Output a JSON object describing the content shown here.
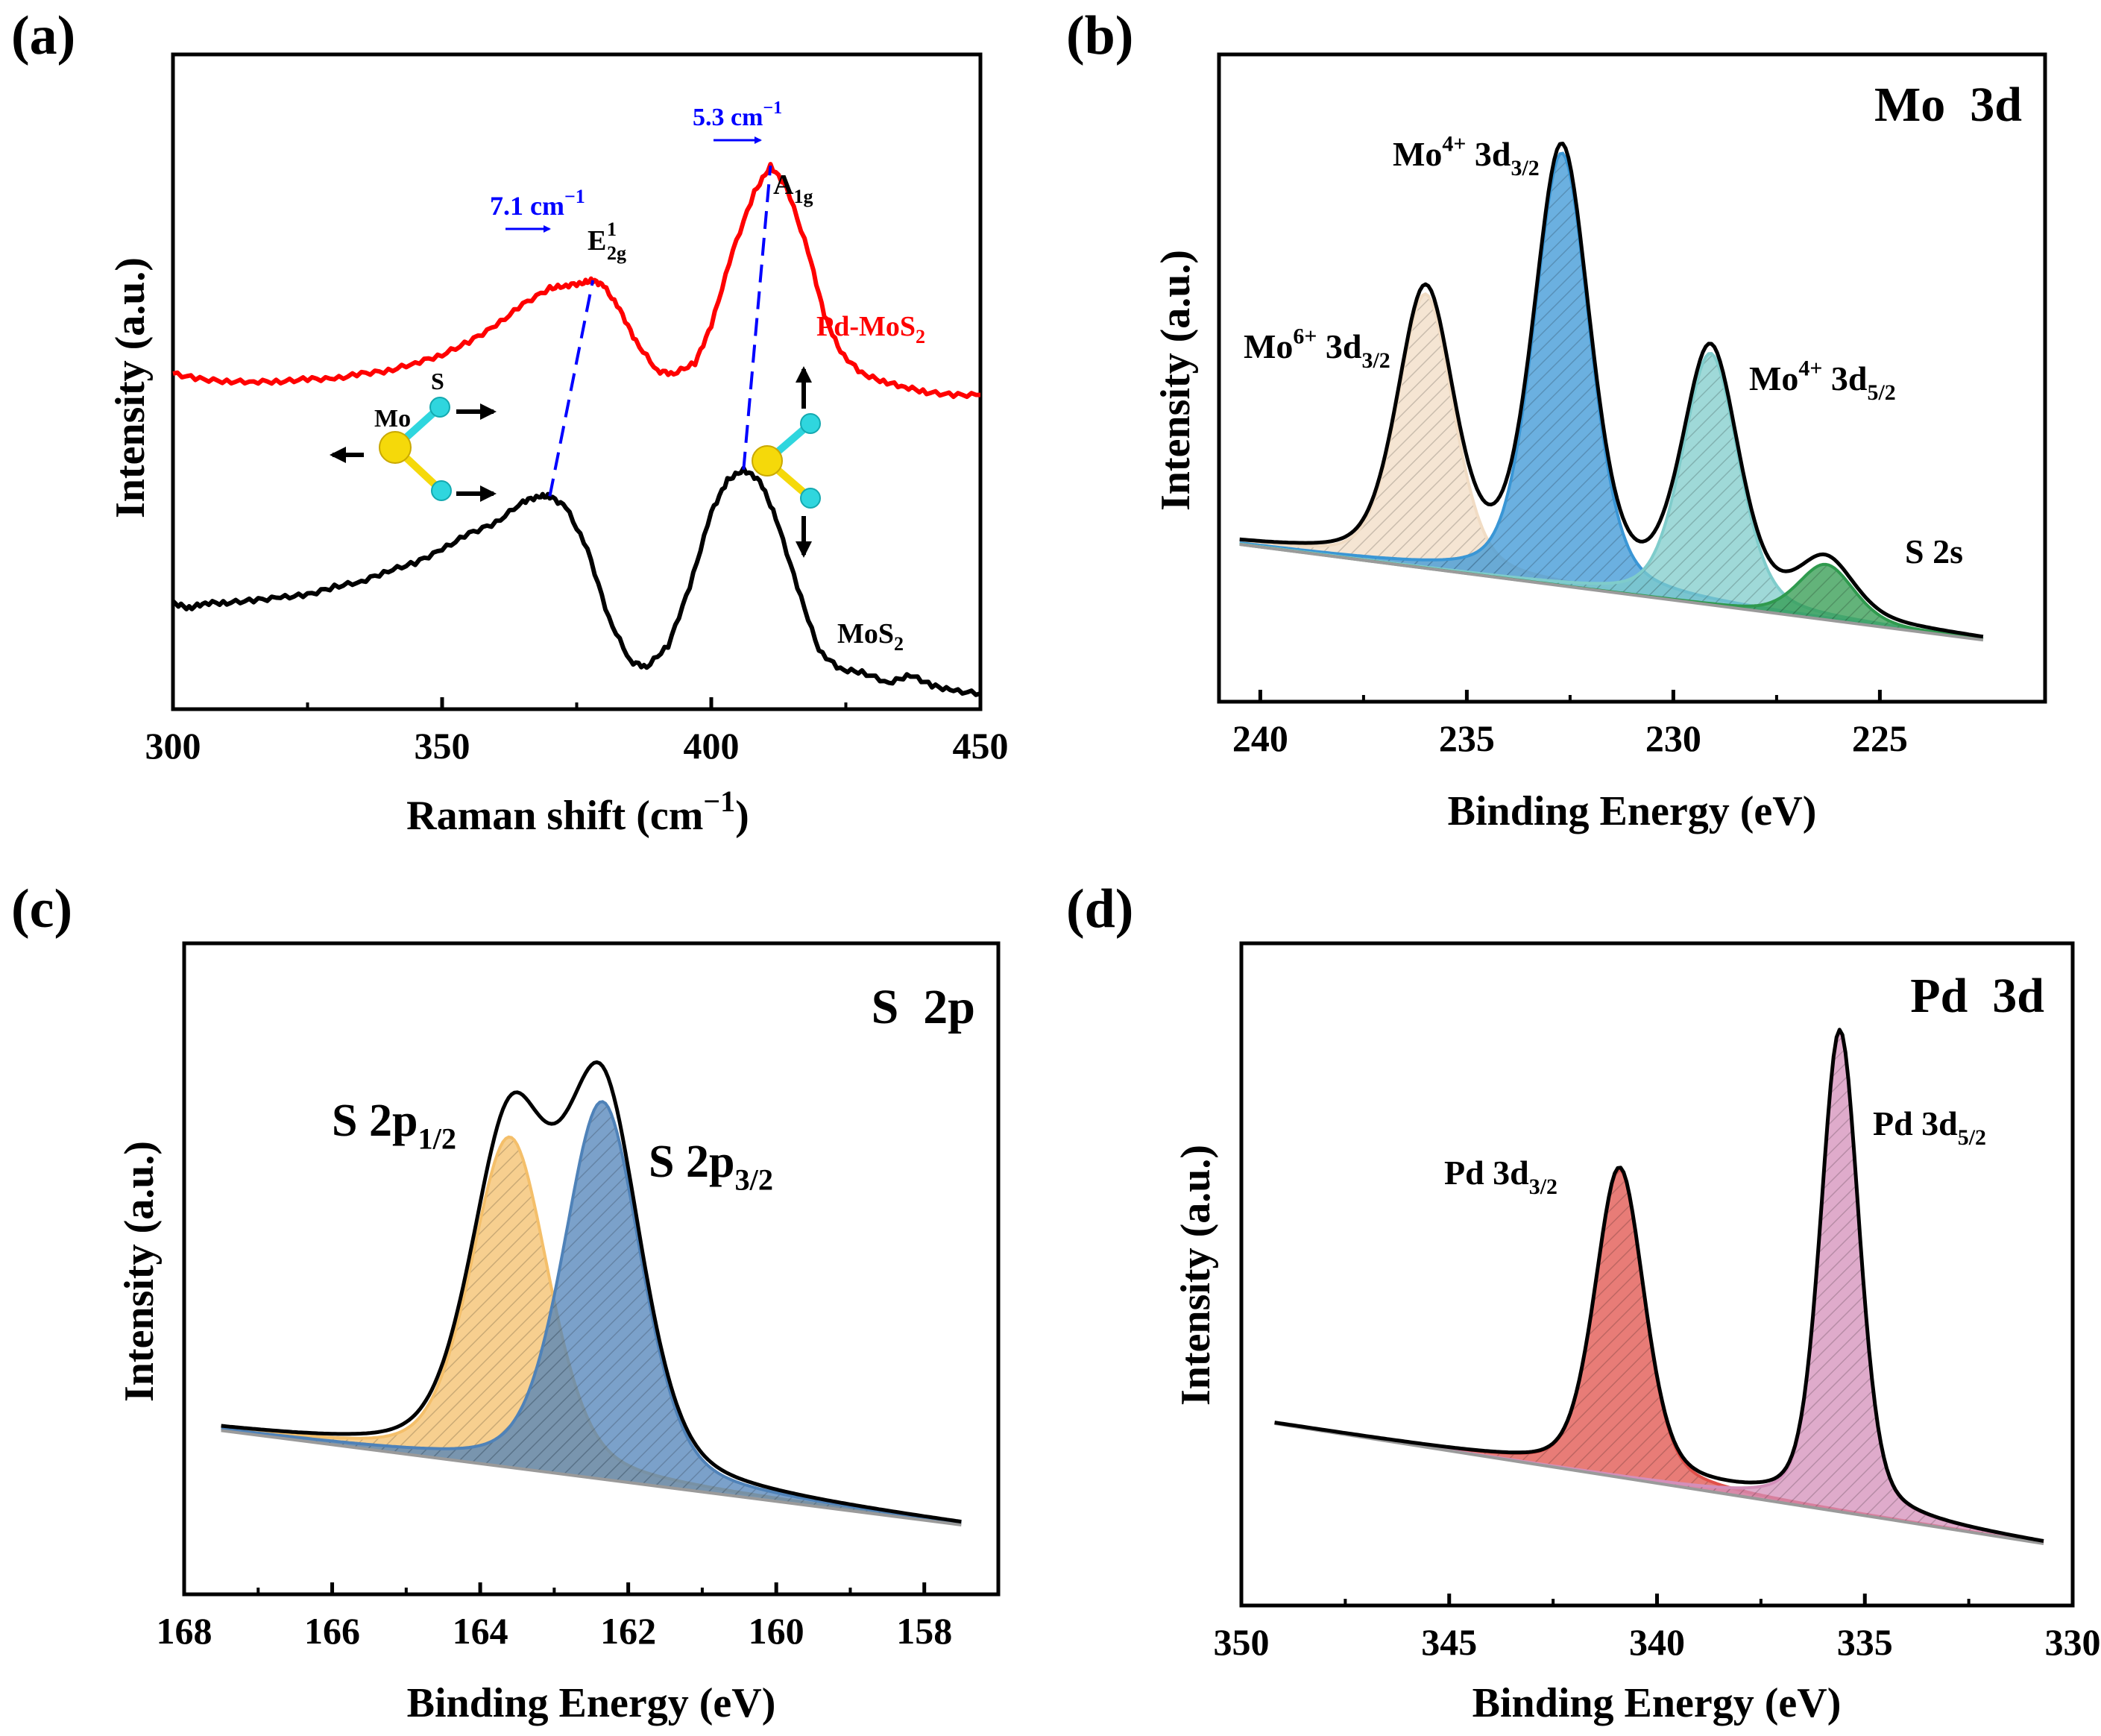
{
  "chart_data": [
    {
      "panel": "(a)",
      "type": "line",
      "xlabel": "Raman shift (cm",
      "xlabel_sup": "−1",
      "xlabel_end": ")",
      "ylabel": "Intensity (a.u.)",
      "xlim": [
        300,
        450
      ],
      "xticks": [
        "300",
        "350",
        "400",
        "450"
      ],
      "series": [
        {
          "name": "Pd-MoS2",
          "label_main": "Pd-MoS",
          "label_sub": "2",
          "color": "#ff0000",
          "x": [
            300,
            305,
            310,
            315,
            320,
            325,
            330,
            335,
            340,
            345,
            350,
            355,
            360,
            365,
            370,
            373,
            376,
            378,
            380,
            383,
            386,
            390,
            393,
            397,
            400,
            404,
            408,
            411,
            414,
            418,
            421,
            424,
            428,
            432,
            436,
            440,
            445,
            450
          ],
          "y": [
            0.6,
            0.59,
            0.585,
            0.585,
            0.585,
            0.59,
            0.59,
            0.6,
            0.605,
            0.62,
            0.635,
            0.66,
            0.69,
            0.73,
            0.76,
            0.765,
            0.77,
            0.775,
            0.765,
            0.72,
            0.66,
            0.605,
            0.6,
            0.62,
            0.69,
            0.83,
            0.94,
            0.99,
            0.95,
            0.83,
            0.71,
            0.64,
            0.6,
            0.585,
            0.575,
            0.565,
            0.56,
            0.56
          ]
        },
        {
          "name": "MoS2",
          "label_main": "MoS",
          "label_sub": "2",
          "color": "#000000",
          "x": [
            300,
            303,
            306,
            310,
            315,
            320,
            325,
            330,
            335,
            340,
            345,
            350,
            355,
            360,
            365,
            368,
            370,
            373,
            377,
            381,
            385,
            388,
            392,
            396,
            400,
            403,
            406,
            409,
            412,
            416,
            420,
            424,
            428,
            433,
            437,
            441,
            445,
            450
          ],
          "y": [
            0.17,
            0.16,
            0.17,
            0.17,
            0.175,
            0.18,
            0.185,
            0.2,
            0.21,
            0.23,
            0.245,
            0.27,
            0.3,
            0.32,
            0.36,
            0.37,
            0.37,
            0.35,
            0.27,
            0.14,
            0.06,
            0.05,
            0.09,
            0.2,
            0.34,
            0.4,
            0.42,
            0.4,
            0.33,
            0.2,
            0.08,
            0.045,
            0.04,
            0.02,
            0.035,
            0.015,
            0.005,
            0.0
          ]
        }
      ],
      "annotations": {
        "shift_e2g": "7.1 cm",
        "shift_a1g": "5.3 cm",
        "shift_sup": "−1",
        "shift_color": "#0000ff",
        "e2g_main": "E",
        "e2g_sup": "1",
        "e2g_sub": "2g",
        "a1g_main": "A",
        "a1g_sub": "1g",
        "atom_mo": "Mo",
        "atom_s": "S",
        "mo_color": "#f5d90a",
        "s_color": "#2fd6de"
      }
    },
    {
      "panel": "(b)",
      "type": "area",
      "title": "Mo  3d",
      "xlabel": "Binding Energy (eV)",
      "ylabel": "Intensity (a.u.)",
      "xlim": [
        241,
        221
      ],
      "xticks": [
        "240",
        "235",
        "230",
        "225"
      ],
      "x_range": [
        240.5,
        222.5
      ],
      "baseline": [
        0.2,
        0.01
      ],
      "peaks": [
        {
          "label_main": "Mo",
          "label_sup": "6+",
          "label_end": " 3d",
          "label_sub": "3/2",
          "center": 236.0,
          "amp": 0.545,
          "width": 0.8,
          "color": "#f1dcc4"
        },
        {
          "label_main": "Mo",
          "label_sup": "4+",
          "label_end": " 3d",
          "label_sub": "3/2",
          "center": 232.7,
          "amp": 0.86,
          "width": 0.8,
          "color": "#3a96d5"
        },
        {
          "label_main": "Mo",
          "label_sup": "4+",
          "label_end": " 3d",
          "label_sub": "5/2",
          "center": 229.1,
          "amp": 0.5,
          "width": 0.8,
          "color": "#7fcccb"
        },
        {
          "label_main": "S 2s",
          "label_sup": "",
          "label_end": "",
          "label_sub": "",
          "center": 226.3,
          "amp": 0.11,
          "width": 0.8,
          "color": "#2f9a4e"
        }
      ]
    },
    {
      "panel": "(c)",
      "type": "area",
      "title": "S  2p",
      "xlabel": "Binding Energy (eV)",
      "ylabel": "Intensity (a.u.)",
      "xlim": [
        168,
        157
      ],
      "xticks": [
        "168",
        "166",
        "164",
        "162",
        "160",
        "158"
      ],
      "x_range": [
        167.5,
        157.5
      ],
      "baseline": [
        0.2,
        0.0
      ],
      "peaks": [
        {
          "label_main": "S 2p",
          "label_sup": "",
          "label_end": "",
          "label_sub": "1/2",
          "center": 163.6,
          "amp": 0.7,
          "width": 0.62,
          "color": "#f4bf6a"
        },
        {
          "label_main": "S 2p",
          "label_sup": "",
          "label_end": "",
          "label_sub": "3/2",
          "center": 162.35,
          "amp": 0.8,
          "width": 0.62,
          "color": "#4f82b8"
        }
      ]
    },
    {
      "panel": "(d)",
      "type": "area",
      "title": "Pd  3d",
      "xlabel": "Binding Energy (eV)",
      "ylabel": "Intensity (a.u.)",
      "xlim": [
        350,
        330
      ],
      "xticks": [
        "350",
        "345",
        "340",
        "335",
        "330"
      ],
      "x_range": [
        349.2,
        330.7
      ],
      "baseline": [
        0.22,
        0.0
      ],
      "peaks": [
        {
          "label_main": "Pd 3d",
          "label_sup": "",
          "label_end": "",
          "label_sub": "3/2",
          "center": 340.9,
          "amp": 0.565,
          "width": 0.7,
          "color": "#e0504a"
        },
        {
          "label_main": "Pd 3d",
          "label_sup": "",
          "label_end": "",
          "label_sub": "5/2",
          "center": 335.6,
          "amp": 0.88,
          "width": 0.55,
          "color": "#d48fba"
        }
      ]
    }
  ]
}
